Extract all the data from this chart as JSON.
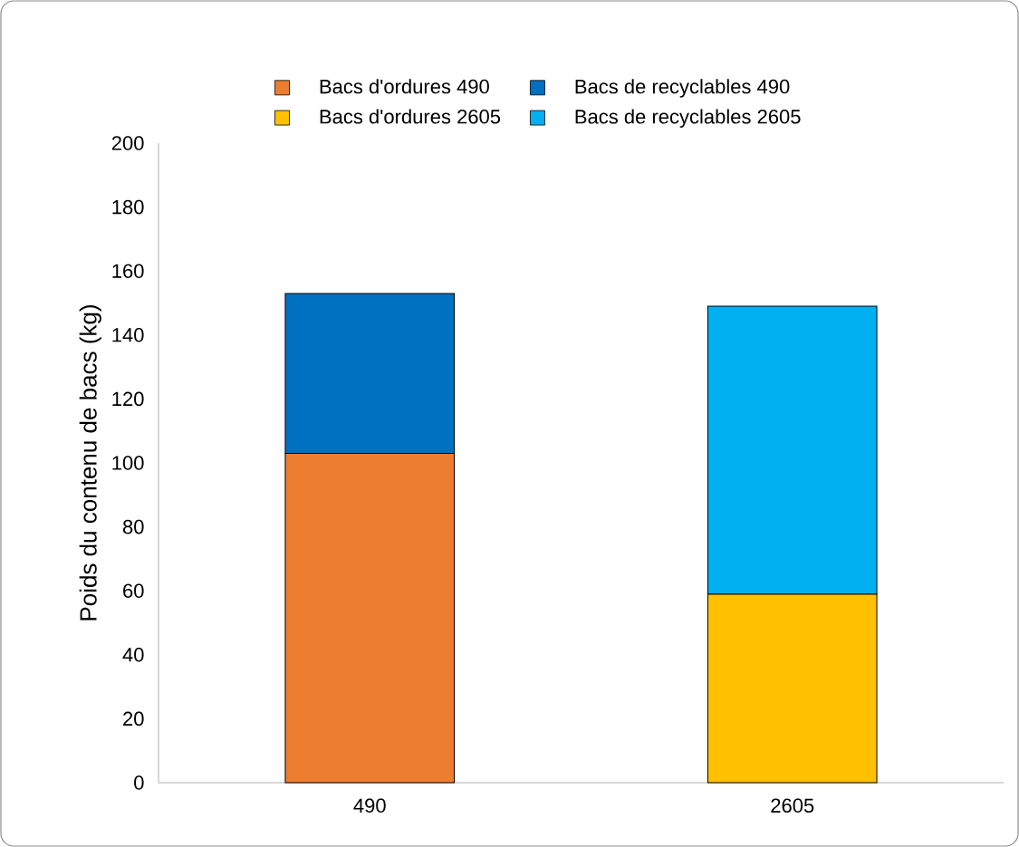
{
  "chart_data": {
    "type": "bar",
    "stacked": true,
    "categories": [
      "490",
      "2605"
    ],
    "ylabel": "Poids du contenu de bacs (kg)",
    "ylim": [
      0,
      200
    ],
    "yticks": [
      0,
      20,
      40,
      60,
      80,
      100,
      120,
      140,
      160,
      180,
      200
    ],
    "legend": "top",
    "grid": false,
    "series": [
      {
        "name": "Bacs d'ordures 490",
        "color": "#ed7d31",
        "values": [
          103,
          null
        ]
      },
      {
        "name": "Bacs de recyclables 490",
        "color": "#0070c0",
        "values": [
          50,
          null
        ]
      },
      {
        "name": "Bacs d'ordures 2605",
        "color": "#ffc000",
        "values": [
          null,
          59
        ]
      },
      {
        "name": "Bacs de recyclables 2605",
        "color": "#00b0f0",
        "values": [
          null,
          90
        ]
      }
    ]
  }
}
